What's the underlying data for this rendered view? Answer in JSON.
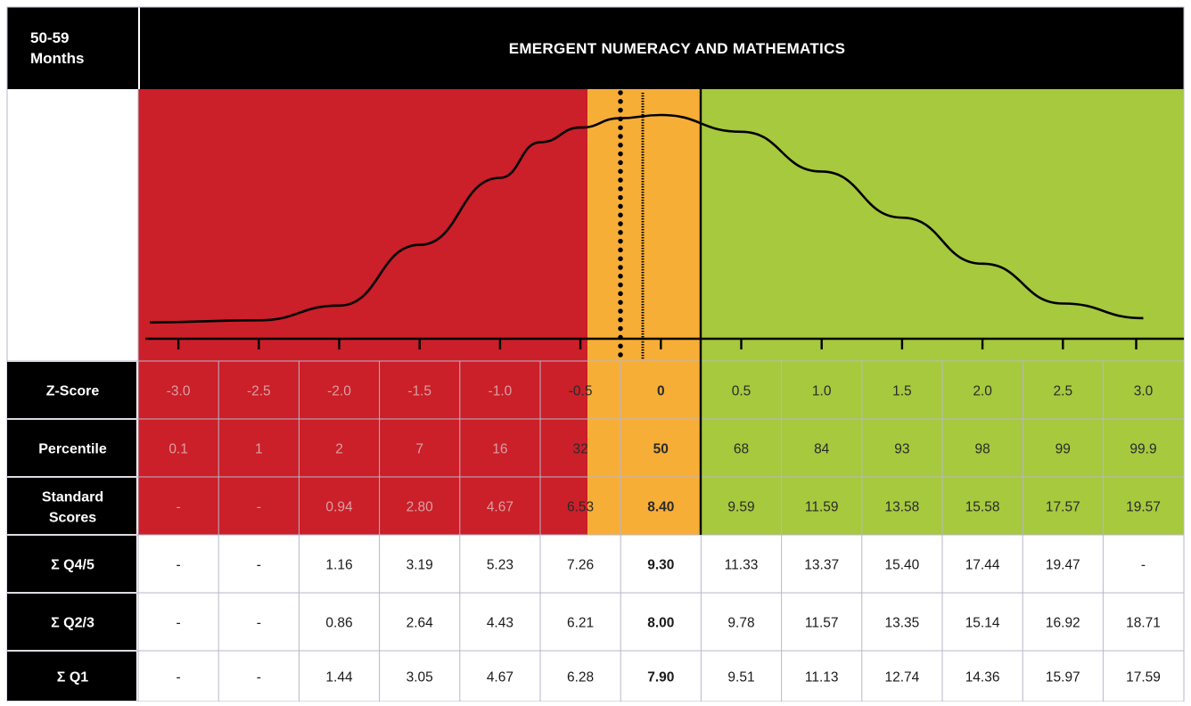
{
  "header": {
    "age_label_line1": "50-59",
    "age_label_line2": "Months",
    "title": "EMERGENT NUMERACY AND MATHEMATICS"
  },
  "colors": {
    "below": "#cb1f29",
    "at": "#f7ae37",
    "above": "#a6c93e",
    "header_bg": "#000000",
    "header_text": "#ffffff",
    "grid_line": "#b9b6c8"
  },
  "chart_data": {
    "type": "table",
    "xlim": [
      -3.0,
      3.0
    ],
    "zones": [
      {
        "name": "below",
        "from": -3.0,
        "to": -0.5
      },
      {
        "name": "at",
        "from": -0.5,
        "to": 0.0
      },
      {
        "name": "above",
        "from": 0.0,
        "to": 3.0
      }
    ],
    "reference_lines": [
      {
        "style": "dotted",
        "x": -0.25
      },
      {
        "style": "dashed",
        "x": -0.15
      },
      {
        "style": "solid",
        "x": 0.0
      }
    ],
    "distribution_curve": {
      "x": [
        -3.0,
        -2.5,
        -2.0,
        -1.5,
        -1.0,
        -0.75,
        -0.5,
        -0.25,
        0.0,
        0.5,
        1.0,
        1.5,
        2.0,
        2.5,
        3.0
      ],
      "y": [
        0.01,
        0.02,
        0.09,
        0.38,
        0.7,
        0.87,
        0.94,
        0.985,
        1.0,
        0.92,
        0.73,
        0.51,
        0.29,
        0.1,
        0.03
      ]
    },
    "columns": [
      "-3.0",
      "-2.5",
      "-2.0",
      "-1.5",
      "-1.0",
      "-0.5",
      "0",
      "0.5",
      "1.0",
      "1.5",
      "2.0",
      "2.5",
      "3.0"
    ],
    "highlight_column": "0",
    "rows": [
      {
        "label": "Z-Score",
        "shaded": true,
        "values": [
          "-3.0",
          "-2.5",
          "-2.0",
          "-1.5",
          "-1.0",
          "-0.5",
          "0",
          "0.5",
          "1.0",
          "1.5",
          "2.0",
          "2.5",
          "3.0"
        ]
      },
      {
        "label": "Percentile",
        "shaded": true,
        "values": [
          "0.1",
          "1",
          "2",
          "7",
          "16",
          "32",
          "50",
          "68",
          "84",
          "93",
          "98",
          "99",
          "99.9"
        ]
      },
      {
        "label": "Standard Scores",
        "shaded": true,
        "values": [
          "-",
          "-",
          "0.94",
          "2.80",
          "4.67",
          "6.53",
          "8.40",
          "9.59",
          "11.59",
          "13.58",
          "15.58",
          "17.57",
          "19.57"
        ]
      },
      {
        "label": "Σ Q4/5",
        "shaded": false,
        "values": [
          "-",
          "-",
          "1.16",
          "3.19",
          "5.23",
          "7.26",
          "9.30",
          "11.33",
          "13.37",
          "15.40",
          "17.44",
          "19.47",
          "-"
        ]
      },
      {
        "label": "Σ Q2/3",
        "shaded": false,
        "values": [
          "-",
          "-",
          "0.86",
          "2.64",
          "4.43",
          "6.21",
          "8.00",
          "9.78",
          "11.57",
          "13.35",
          "15.14",
          "16.92",
          "18.71"
        ]
      },
      {
        "label": "Σ Q1",
        "shaded": false,
        "values": [
          "-",
          "-",
          "1.44",
          "3.05",
          "4.67",
          "6.28",
          "7.90",
          "9.51",
          "11.13",
          "12.74",
          "14.36",
          "15.97",
          "17.59"
        ]
      }
    ]
  }
}
